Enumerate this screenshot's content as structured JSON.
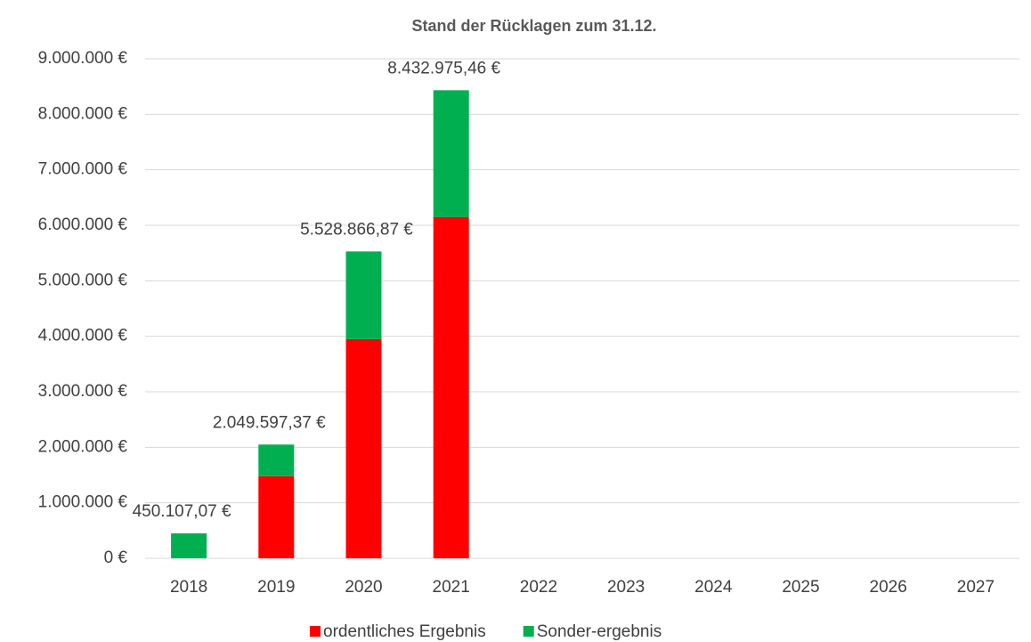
{
  "chart_data": {
    "type": "stacked_bar",
    "title": "Stand der Rücklagen zum 31.12.",
    "categories": [
      "2018",
      "2019",
      "2020",
      "2021",
      "2022",
      "2023",
      "2024",
      "2025",
      "2026",
      "2027"
    ],
    "series": [
      {
        "name": "ordentliches Ergebnis",
        "color": "#ff0000",
        "values": [
          null,
          1480000,
          3950000,
          6150000,
          null,
          null,
          null,
          null,
          null,
          null
        ]
      },
      {
        "name": "Sonder-ergebnis",
        "color": "#00b050",
        "values": [
          450107.07,
          569597.37,
          1578866.87,
          2282975.46,
          null,
          null,
          null,
          null,
          null,
          null
        ]
      }
    ],
    "totals": [
      450107.07,
      2049597.37,
      5528866.87,
      8432975.46,
      null,
      null,
      null,
      null,
      null,
      null
    ],
    "total_labels": [
      "450.107,07 €",
      "2.049.597,37 €",
      "5.528.866,87 €",
      "8.432.975,46 €",
      null,
      null,
      null,
      null,
      null,
      null
    ],
    "ylim": [
      0,
      9000000
    ],
    "yticks": [
      {
        "value": 0,
        "label": "0 €"
      },
      {
        "value": 1000000,
        "label": "1.000.000 €"
      },
      {
        "value": 2000000,
        "label": "2.000.000 €"
      },
      {
        "value": 3000000,
        "label": "3.000.000 €"
      },
      {
        "value": 4000000,
        "label": "4.000.000 €"
      },
      {
        "value": 5000000,
        "label": "5.000.000 €"
      },
      {
        "value": 6000000,
        "label": "6.000.000 €"
      },
      {
        "value": 7000000,
        "label": "7.000.000 €"
      },
      {
        "value": 8000000,
        "label": "8.000.000 €"
      },
      {
        "value": 9000000,
        "label": "9.000.000 €"
      }
    ],
    "grid": true,
    "legend": "bottom"
  }
}
